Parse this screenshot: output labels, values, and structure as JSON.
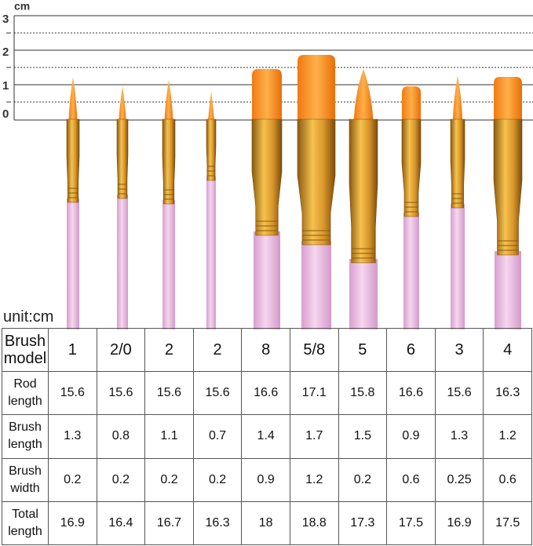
{
  "ruler": {
    "unit": "cm",
    "labels": [
      "3",
      "2",
      "1",
      "0"
    ]
  },
  "table": {
    "unit_note": "unit:cm",
    "rows": [
      [
        "Brush model",
        "1",
        "2/0",
        "2",
        "2",
        "8",
        "5/8",
        "5",
        "6",
        "3",
        "4"
      ],
      [
        "Rod length",
        15.6,
        15.6,
        15.6,
        15.6,
        16.6,
        17.1,
        15.8,
        16.6,
        15.6,
        16.3
      ],
      [
        "Brush length",
        1.3,
        0.8,
        1.1,
        0.7,
        1.4,
        1.7,
        1.5,
        0.9,
        1.3,
        1.2
      ],
      [
        "Brush width",
        0.2,
        0.2,
        0.2,
        0.2,
        0.9,
        1.2,
        0.2,
        0.6,
        0.25,
        0.6
      ],
      [
        "Total length",
        16.9,
        16.4,
        16.7,
        16.3,
        18,
        18.8,
        17.3,
        17.5,
        16.9,
        17.5
      ]
    ]
  }
}
